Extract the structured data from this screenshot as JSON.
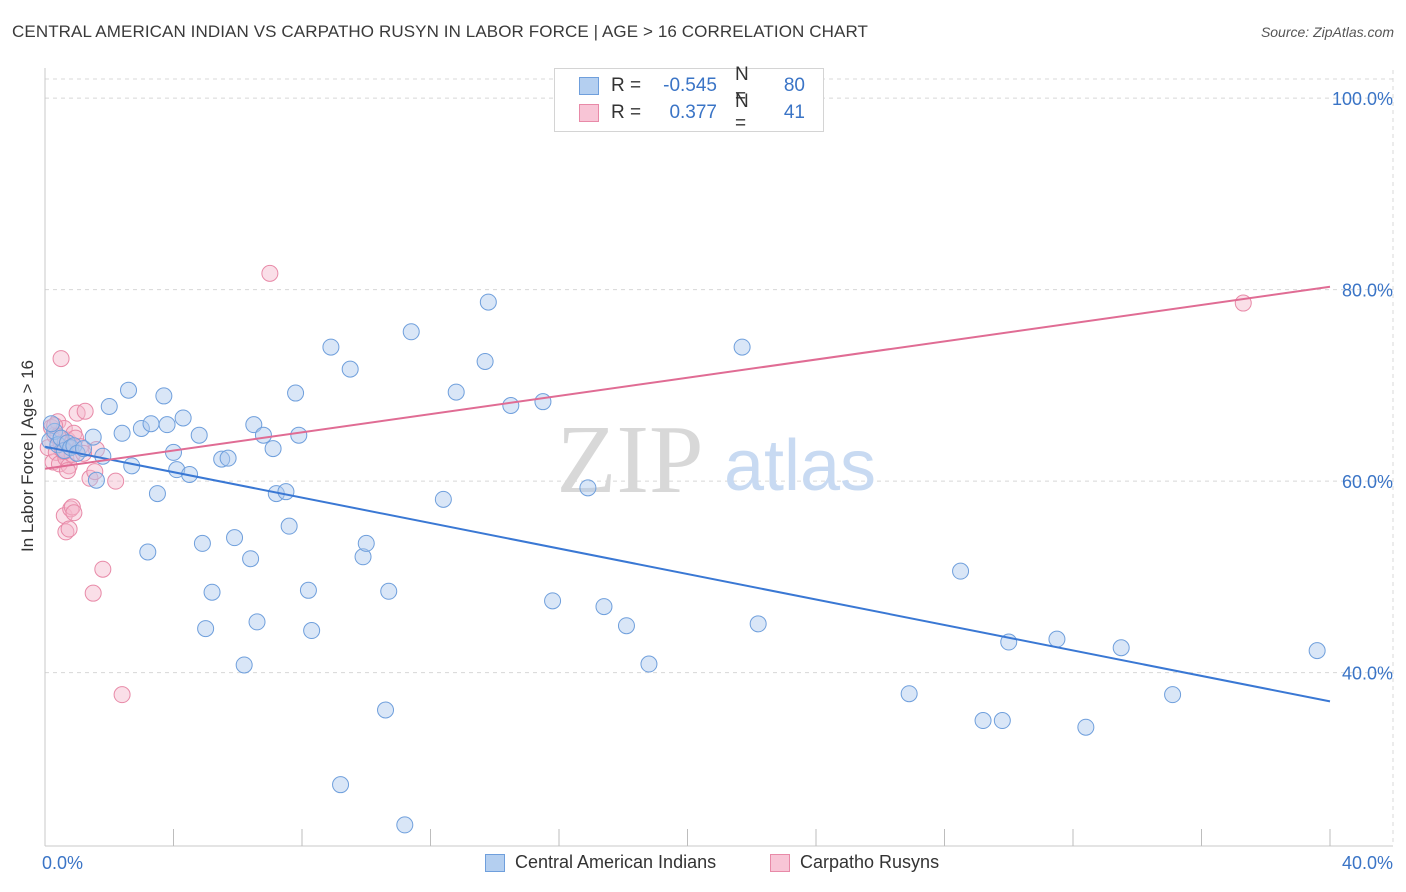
{
  "title": "CENTRAL AMERICAN INDIAN VS CARPATHO RUSYN IN LABOR FORCE | AGE > 16 CORRELATION CHART",
  "source": "Source: ZipAtlas.com",
  "watermark": {
    "zip": "ZIP",
    "atlas": "atlas"
  },
  "legend": {
    "rows": [
      {
        "r_label": "R =",
        "r_value": "-0.545",
        "n_label": "N =",
        "n_value": "80"
      },
      {
        "r_label": "R =",
        "r_value": "0.377",
        "n_label": "N =",
        "n_value": "41"
      }
    ]
  },
  "bottom_legend": {
    "series1": "Central American Indians",
    "series2": "Carpatho Rusyns"
  },
  "colors": {
    "blue_fill": "#aac8ee",
    "blue_stroke": "#6f9fdc",
    "blue_line": "#3a78d4",
    "pink_fill": "#f5b7cb",
    "pink_stroke": "#e88aa8",
    "pink_line": "#e06c94",
    "tick_label": "#3a74c6",
    "grid": "#d8d8d8"
  },
  "chart_data": {
    "type": "scatter",
    "title": "CENTRAL AMERICAN INDIAN VS CARPATHO RUSYN IN LABOR FORCE | AGE > 16 CORRELATION CHART",
    "xlabel": "",
    "ylabel": "In Labor Force | Age > 16",
    "xlim": [
      0,
      40
    ],
    "ylim": [
      22,
      102
    ],
    "x_tick_labels": [
      "0.0%",
      "40.0%"
    ],
    "y_ticks": [
      40,
      60,
      80,
      100
    ],
    "y_tick_labels": [
      "40.0%",
      "60.0%",
      "80.0%",
      "100.0%"
    ],
    "series": [
      {
        "name": "Central American Indians",
        "R": -0.545,
        "N": 80,
        "trend": [
          [
            0,
            63.6
          ],
          [
            40,
            37.0
          ]
        ],
        "points": [
          [
            0.15,
            64.2
          ],
          [
            0.3,
            65.2
          ],
          [
            0.4,
            63.8
          ],
          [
            0.5,
            64.5
          ],
          [
            0.6,
            63.2
          ],
          [
            0.7,
            64.0
          ],
          [
            0.8,
            63.5
          ],
          [
            0.9,
            63.7
          ],
          [
            1.0,
            62.9
          ],
          [
            1.2,
            63.4
          ],
          [
            1.5,
            64.6
          ],
          [
            1.6,
            60.1
          ],
          [
            1.8,
            62.6
          ],
          [
            2.0,
            67.8
          ],
          [
            2.4,
            65.0
          ],
          [
            2.6,
            69.5
          ],
          [
            2.7,
            61.6
          ],
          [
            3.0,
            65.5
          ],
          [
            3.2,
            52.6
          ],
          [
            3.3,
            66.0
          ],
          [
            3.5,
            58.7
          ],
          [
            3.7,
            68.9
          ],
          [
            3.8,
            65.9
          ],
          [
            4.0,
            63.0
          ],
          [
            4.1,
            61.2
          ],
          [
            4.3,
            66.6
          ],
          [
            4.5,
            60.7
          ],
          [
            4.8,
            64.8
          ],
          [
            4.9,
            53.5
          ],
          [
            5.0,
            44.6
          ],
          [
            5.2,
            48.4
          ],
          [
            5.5,
            62.3
          ],
          [
            5.7,
            62.4
          ],
          [
            5.9,
            54.1
          ],
          [
            6.2,
            40.8
          ],
          [
            6.4,
            51.9
          ],
          [
            6.5,
            65.9
          ],
          [
            6.6,
            45.3
          ],
          [
            6.8,
            64.8
          ],
          [
            7.1,
            63.4
          ],
          [
            7.2,
            58.7
          ],
          [
            7.5,
            58.9
          ],
          [
            7.6,
            55.3
          ],
          [
            7.8,
            69.2
          ],
          [
            7.9,
            64.8
          ],
          [
            8.2,
            48.6
          ],
          [
            8.3,
            44.4
          ],
          [
            8.9,
            74.0
          ],
          [
            9.2,
            28.3
          ],
          [
            9.5,
            71.7
          ],
          [
            9.9,
            52.1
          ],
          [
            10.0,
            53.5
          ],
          [
            10.6,
            36.1
          ],
          [
            10.7,
            48.5
          ],
          [
            11.2,
            24.1
          ],
          [
            11.4,
            75.6
          ],
          [
            12.4,
            58.1
          ],
          [
            12.8,
            69.3
          ],
          [
            13.7,
            72.5
          ],
          [
            13.8,
            78.7
          ],
          [
            14.5,
            67.9
          ],
          [
            15.5,
            68.3
          ],
          [
            15.8,
            47.5
          ],
          [
            16.9,
            59.3
          ],
          [
            17.4,
            46.9
          ],
          [
            18.1,
            44.9
          ],
          [
            18.8,
            40.9
          ],
          [
            21.7,
            74.0
          ],
          [
            22.2,
            45.1
          ],
          [
            26.9,
            37.8
          ],
          [
            28.5,
            50.6
          ],
          [
            29.2,
            35.0
          ],
          [
            29.8,
            35.0
          ],
          [
            30.0,
            43.2
          ],
          [
            31.5,
            43.5
          ],
          [
            32.4,
            34.3
          ],
          [
            33.5,
            42.6
          ],
          [
            35.1,
            37.7
          ],
          [
            39.6,
            42.3
          ],
          [
            0.2,
            66.0
          ]
        ]
      },
      {
        "name": "Carpatho Rusyns",
        "R": 0.377,
        "N": 41,
        "trend": [
          [
            0,
            61.3
          ],
          [
            40,
            80.3
          ]
        ],
        "points": [
          [
            0.1,
            63.5
          ],
          [
            0.2,
            65.6
          ],
          [
            0.25,
            62.0
          ],
          [
            0.3,
            64.8
          ],
          [
            0.35,
            63.0
          ],
          [
            0.4,
            66.2
          ],
          [
            0.45,
            61.8
          ],
          [
            0.5,
            64.0
          ],
          [
            0.55,
            63.2
          ],
          [
            0.6,
            65.5
          ],
          [
            0.65,
            62.4
          ],
          [
            0.7,
            64.3
          ],
          [
            0.75,
            61.6
          ],
          [
            0.8,
            63.9
          ],
          [
            0.85,
            62.8
          ],
          [
            0.9,
            65.0
          ],
          [
            0.5,
            72.8
          ],
          [
            0.6,
            56.4
          ],
          [
            0.65,
            54.7
          ],
          [
            0.7,
            61.1
          ],
          [
            0.75,
            55.0
          ],
          [
            0.8,
            57.1
          ],
          [
            0.85,
            57.3
          ],
          [
            0.9,
            56.7
          ],
          [
            0.95,
            64.5
          ],
          [
            1.0,
            67.1
          ],
          [
            1.1,
            63.6
          ],
          [
            1.25,
            67.3
          ],
          [
            1.4,
            60.3
          ],
          [
            1.5,
            48.3
          ],
          [
            1.55,
            61.0
          ],
          [
            1.6,
            63.3
          ],
          [
            1.8,
            50.8
          ],
          [
            2.2,
            60.0
          ],
          [
            2.4,
            37.7
          ],
          [
            7.0,
            81.7
          ],
          [
            37.3,
            78.6
          ],
          [
            0.3,
            65.8
          ],
          [
            0.4,
            64.7
          ],
          [
            0.6,
            63.1
          ],
          [
            1.2,
            62.9
          ]
        ]
      }
    ]
  }
}
